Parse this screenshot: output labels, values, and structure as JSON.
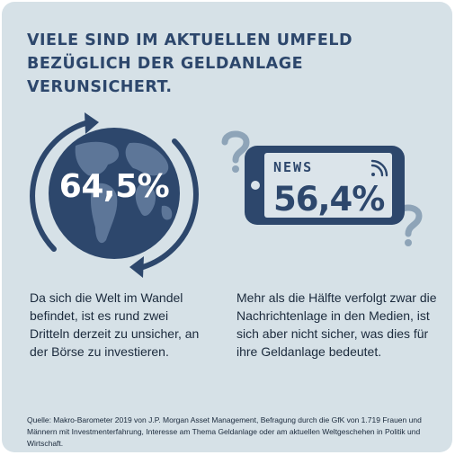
{
  "headline": "VIELE SIND IM AKTUELLEN UMFELD BEZÜGLICH DER GELDANLAGE VERUNSICHERT.",
  "colors": {
    "background": "#d6e1e7",
    "navy": "#2d476c",
    "screen": "#dbe4ea",
    "text": "#1b2a3c"
  },
  "globe_stat": {
    "icon": "globe-with-cycle-arrows-icon",
    "value": "64,5%",
    "description": "Da sich die Welt im Wandel befindet, ist es rund zwei Dritteln derzeit zu unsicher, an der Börse zu investieren."
  },
  "news_stat": {
    "icon": "smartphone-news-icon",
    "label": "NEWS",
    "value": "56,4%",
    "description": "Mehr als die Hälfte verfolgt zwar die Nachrichtenlage in den Medien, ist sich aber nicht sicher, was dies für ihre Geldanlage bedeutet."
  },
  "source": "Quelle: Makro-Barometer 2019 von J.P. Morgan Asset Management, Befragung durch die GfK von 1.719 Frauen und Männern mit Investmenterfahrung, Interesse am Thema Geldanlage oder am aktuellen Weltgeschehen in Politik und Wirtschaft."
}
